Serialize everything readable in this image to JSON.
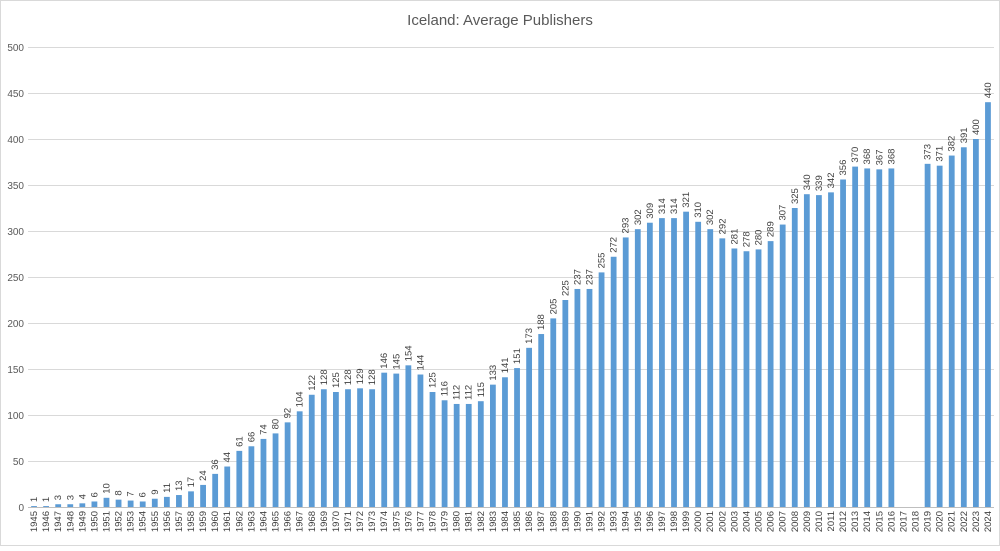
{
  "chart_data": {
    "type": "bar",
    "title": "Iceland: Average Publishers",
    "xlabel": "",
    "ylabel": "",
    "ylim": [
      0,
      500
    ],
    "yticks": [
      0,
      50,
      100,
      150,
      200,
      250,
      300,
      350,
      400,
      450,
      500
    ],
    "grid": true,
    "legend": "none",
    "bar_color": "#5b9bd5",
    "categories": [
      "1945",
      "1946",
      "1947",
      "1948",
      "1949",
      "1950",
      "1951",
      "1952",
      "1953",
      "1954",
      "1955",
      "1956",
      "1957",
      "1958",
      "1959",
      "1960",
      "1961",
      "1962",
      "1963",
      "1964",
      "1965",
      "1966",
      "1967",
      "1968",
      "1969",
      "1970",
      "1971",
      "1972",
      "1973",
      "1974",
      "1975",
      "1976",
      "1977",
      "1978",
      "1979",
      "1980",
      "1981",
      "1982",
      "1983",
      "1984",
      "1985",
      "1986",
      "1987",
      "1988",
      "1989",
      "1990",
      "1991",
      "1992",
      "1993",
      "1994",
      "1995",
      "1996",
      "1997",
      "1998",
      "1999",
      "2000",
      "2001",
      "2002",
      "2003",
      "2004",
      "2005",
      "2006",
      "2007",
      "2008",
      "2009",
      "2010",
      "2011",
      "2012",
      "2013",
      "2014",
      "2015",
      "2016",
      "2017",
      "2018",
      "2019",
      "2020",
      "2021",
      "2022",
      "2023",
      "2024"
    ],
    "values": [
      1,
      1,
      3,
      3,
      4,
      6,
      10,
      8,
      7,
      6,
      9,
      11,
      13,
      17,
      24,
      36,
      44,
      61,
      66,
      74,
      80,
      92,
      104,
      122,
      128,
      125,
      128,
      129,
      128,
      146,
      145,
      154,
      144,
      125,
      116,
      112,
      112,
      115,
      133,
      141,
      151,
      173,
      188,
      205,
      225,
      237,
      237,
      255,
      272,
      293,
      302,
      309,
      314,
      314,
      321,
      310,
      302,
      292,
      281,
      278,
      280,
      289,
      307,
      325,
      340,
      339,
      342,
      356,
      370,
      368,
      367,
      368,
      null,
      null,
      373,
      371,
      382,
      391,
      400,
      440
    ]
  }
}
